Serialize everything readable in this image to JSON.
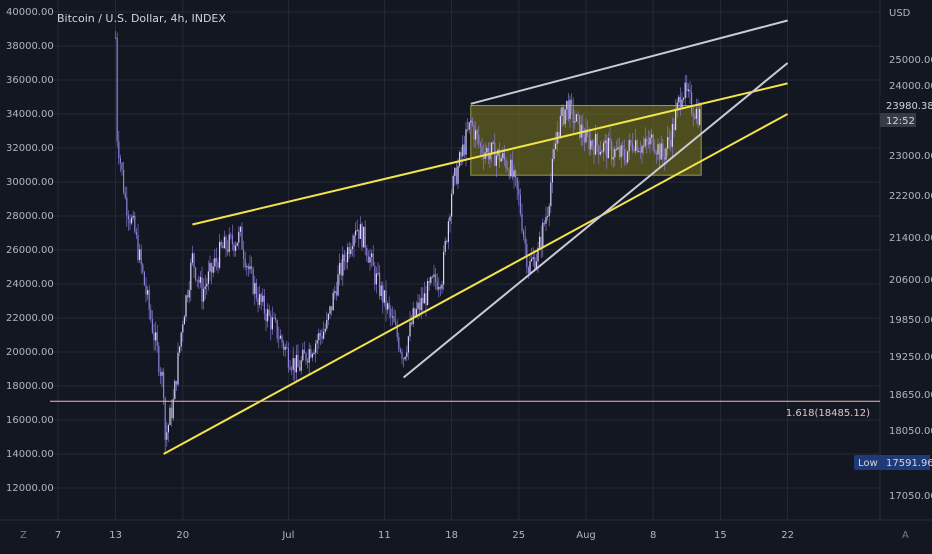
{
  "title": "Bitcoin / U.S. Dollar, 4h, INDEX",
  "currency": "USD",
  "colors": {
    "background": "#131722",
    "grid": "#242a38",
    "candle": "#8f7fe0",
    "trend_yellow": "#f2e34a",
    "trend_white": "#c9ccd6",
    "fib": "#f5b8b8",
    "box_fill": "#7d7a1e",
    "text": "#b2b5be",
    "countdown_bg": "#363a45",
    "low_bg": "#1e3a78"
  },
  "axes": {
    "left_ticks": [
      "40000.00",
      "38000.00",
      "36000.00",
      "34000.00",
      "32000.00",
      "30000.00",
      "28000.00",
      "26000.00",
      "24000.00",
      "22000.00",
      "20000.00",
      "18000.00",
      "16000.00",
      "14000.00",
      "12000.00"
    ],
    "right_ticks": [
      "25000.00",
      "24000.00",
      "23000.00",
      "22200.00",
      "21400.00",
      "20600.00",
      "19850.00",
      "19250.00",
      "18650.00",
      "18050.00",
      "17050.00"
    ],
    "x_ticks": [
      "7",
      "13",
      "20",
      "Jul",
      "11",
      "18",
      "25",
      "Aug",
      "8",
      "15",
      "22"
    ]
  },
  "labels": {
    "price_tag": "23980.38",
    "countdown": "12:52",
    "fib_label": "1.618(18485.12)",
    "low_label": "Low",
    "low_value": "17591.96",
    "corner_left": "Z",
    "corner_right": "A"
  },
  "chart_data": {
    "type": "candlestick",
    "title": "Bitcoin / U.S. Dollar, 4h, INDEX",
    "price_path": [
      {
        "x": "Jun 13",
        "y": 38500
      },
      {
        "x": "Jun 13",
        "y": 33500
      },
      {
        "x": "Jun 14",
        "y": 29000
      },
      {
        "x": "Jun 15",
        "y": 27000
      },
      {
        "x": "Jun 16",
        "y": 24000
      },
      {
        "x": "Jun 18",
        "y": 18000
      },
      {
        "x": "Jun 18",
        "y": 14500
      },
      {
        "x": "Jun 19",
        "y": 17000
      },
      {
        "x": "Jun 20",
        "y": 22000
      },
      {
        "x": "Jun 21",
        "y": 25500
      },
      {
        "x": "Jun 22",
        "y": 23500
      },
      {
        "x": "Jun 24",
        "y": 26000
      },
      {
        "x": "Jun 26",
        "y": 26800
      },
      {
        "x": "Jun 27",
        "y": 24500
      },
      {
        "x": "Jun 28",
        "y": 23000
      },
      {
        "x": "Jun 30",
        "y": 21000
      },
      {
        "x": "Jul 1",
        "y": 19800
      },
      {
        "x": "Jul 2",
        "y": 19000
      },
      {
        "x": "Jul 3",
        "y": 20000
      },
      {
        "x": "Jul 5",
        "y": 21500
      },
      {
        "x": "Jul 6",
        "y": 24000
      },
      {
        "x": "Jul 8",
        "y": 27500
      },
      {
        "x": "Jul 9",
        "y": 26500
      },
      {
        "x": "Jul 10",
        "y": 24500
      },
      {
        "x": "Jul 12",
        "y": 21500
      },
      {
        "x": "Jul 13",
        "y": 19800
      },
      {
        "x": "Jul 14",
        "y": 22000
      },
      {
        "x": "Jul 16",
        "y": 24000
      },
      {
        "x": "Jul 17",
        "y": 24500
      },
      {
        "x": "Jul 18",
        "y": 29500
      },
      {
        "x": "Jul 19",
        "y": 31500
      },
      {
        "x": "Jul 20",
        "y": 33500
      },
      {
        "x": "Jul 21",
        "y": 32000
      },
      {
        "x": "Jul 23",
        "y": 31500
      },
      {
        "x": "Jul 24",
        "y": 31000
      },
      {
        "x": "Jul 25",
        "y": 29000
      },
      {
        "x": "Jul 26",
        "y": 25000
      },
      {
        "x": "Jul 27",
        "y": 25800
      },
      {
        "x": "Jul 28",
        "y": 28500
      },
      {
        "x": "Jul 29",
        "y": 33000
      },
      {
        "x": "Jul 30",
        "y": 34500
      },
      {
        "x": "Jul 31",
        "y": 33500
      },
      {
        "x": "Aug 1",
        "y": 32500
      },
      {
        "x": "Aug 3",
        "y": 32000
      },
      {
        "x": "Aug 5",
        "y": 31500
      },
      {
        "x": "Aug 6",
        "y": 32500
      },
      {
        "x": "Aug 7",
        "y": 32000
      },
      {
        "x": "Aug 8",
        "y": 32500
      },
      {
        "x": "Aug 9",
        "y": 31500
      },
      {
        "x": "Aug 10",
        "y": 33000
      },
      {
        "x": "Aug 11",
        "y": 35500
      },
      {
        "x": "Aug 12",
        "y": 34500
      },
      {
        "x": "Aug 13",
        "y": 33800
      }
    ],
    "trendlines": [
      {
        "color": "yellow",
        "from": {
          "x": "Jun 21",
          "y": 27500
        },
        "to": {
          "x": "Aug 22",
          "y": 35800
        }
      },
      {
        "color": "yellow",
        "from": {
          "x": "Jun 18",
          "y": 14000
        },
        "to": {
          "x": "Aug 22",
          "y": 34000
        }
      },
      {
        "color": "white",
        "from": {
          "x": "Jul 20",
          "y": 34600
        },
        "to": {
          "x": "Aug 22",
          "y": 39500
        }
      },
      {
        "color": "white",
        "from": {
          "x": "Jul 13",
          "y": 18500
        },
        "to": {
          "x": "Aug 22",
          "y": 37000
        }
      }
    ],
    "box": {
      "x0": "Jul 20",
      "x1": "Aug 13",
      "y0": 30400,
      "y1": 34500
    },
    "fib_level": {
      "label": "1.618(18485.12)",
      "y": 17100
    },
    "low": 17591.96,
    "last_price": 23980.38,
    "y_range": [
      11000,
      40000
    ]
  }
}
